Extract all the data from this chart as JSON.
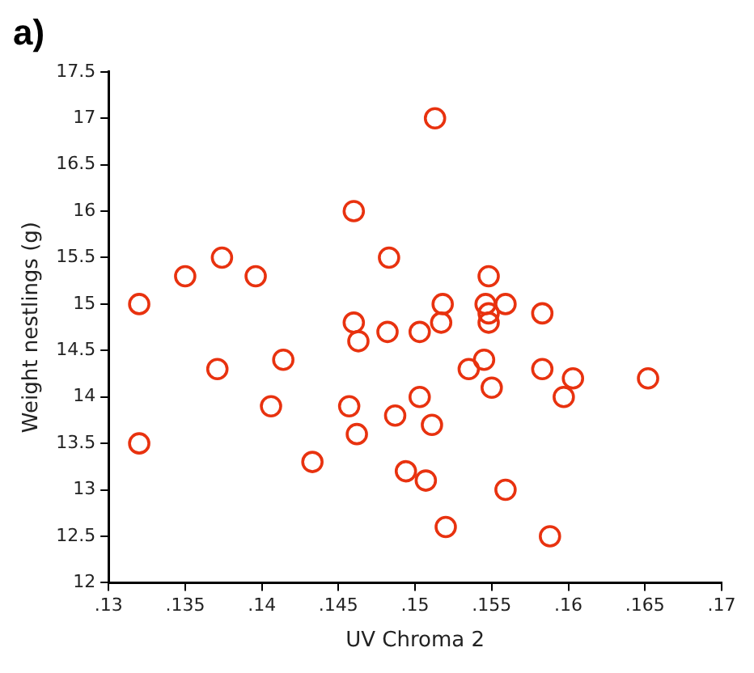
{
  "chart_data": {
    "type": "scatter",
    "title": "a)",
    "xlabel": "UV Chroma 2",
    "ylabel": "Weight nestlings (g)",
    "x": [
      0.132,
      0.132,
      0.135,
      0.1374,
      0.1371,
      0.1396,
      0.1414,
      0.1406,
      0.1433,
      0.146,
      0.146,
      0.1463,
      0.1457,
      0.1462,
      0.1483,
      0.1482,
      0.1487,
      0.1494,
      0.1507,
      0.1503,
      0.1503,
      0.1513,
      0.1548,
      0.1518,
      0.1546,
      0.1559,
      0.1583,
      0.1548,
      0.1517,
      0.1548,
      0.1545,
      0.1535,
      0.1583,
      0.1603,
      0.1652,
      0.155,
      0.1597,
      0.1511,
      0.1559,
      0.152,
      0.1588
    ],
    "series": [
      {
        "color": "#e8320f",
        "values": [
          15.0,
          13.5,
          15.3,
          15.5,
          14.3,
          15.3,
          14.4,
          13.9,
          13.3,
          16.0,
          14.8,
          14.6,
          13.9,
          13.6,
          15.5,
          14.7,
          13.8,
          13.2,
          13.1,
          14.7,
          14.0,
          17.0,
          15.3,
          15.0,
          15.0,
          15.0,
          14.9,
          14.9,
          14.8,
          14.8,
          14.4,
          14.3,
          14.3,
          14.2,
          14.2,
          14.1,
          14.0,
          13.7,
          13.0,
          12.6,
          12.5
        ]
      }
    ],
    "xlim": [
      0.13,
      0.17
    ],
    "xticks": [
      {
        "value": 0.13,
        "label": ".13"
      },
      {
        "value": 0.135,
        "label": ".135"
      },
      {
        "value": 0.14,
        "label": ".14"
      },
      {
        "value": 0.145,
        "label": ".145"
      },
      {
        "value": 0.15,
        "label": ".15"
      },
      {
        "value": 0.155,
        "label": ".155"
      },
      {
        "value": 0.16,
        "label": ".16"
      },
      {
        "value": 0.165,
        "label": ".165"
      },
      {
        "value": 0.17,
        "label": ".17"
      }
    ],
    "ylim": [
      12,
      17.5
    ],
    "yticks": [
      12,
      12.5,
      13,
      13.5,
      14,
      14.5,
      15,
      15.5,
      16,
      16.5,
      17,
      17.5
    ],
    "grid": false,
    "legend": false,
    "marker": "circle"
  }
}
